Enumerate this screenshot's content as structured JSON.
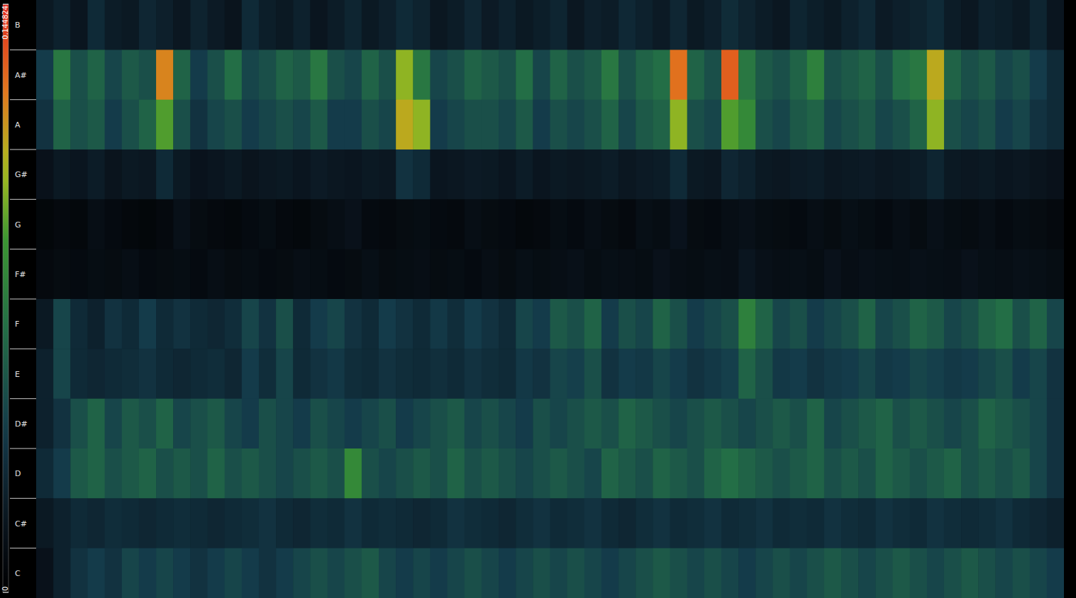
{
  "chart_data": {
    "type": "heatmap",
    "categories": [
      "B",
      "A#",
      "A",
      "G#",
      "G",
      "F#",
      "F",
      "E",
      "D#",
      "D",
      "C#",
      "C"
    ],
    "tick_labels": "y",
    "colorbar": {
      "range": [
        0,
        0.144824
      ],
      "ticks": [
        0,
        0.144824
      ]
    },
    "values": [
      [
        0.02,
        0.025,
        0.018,
        0.03,
        0.022,
        0.02,
        0.028,
        0.024,
        0.019,
        0.026,
        0.021,
        0.017,
        0.03,
        0.023,
        0.02,
        0.025,
        0.018,
        0.022,
        0.027,
        0.02,
        0.024,
        0.03,
        0.026,
        0.019,
        0.022,
        0.028,
        0.021,
        0.025,
        0.02,
        0.023,
        0.027,
        0.019,
        0.024,
        0.022,
        0.029,
        0.025,
        0.021,
        0.028,
        0.02,
        0.024,
        0.031,
        0.026,
        0.022,
        0.019,
        0.027,
        0.023,
        0.02,
        0.025,
        0.029,
        0.021,
        0.024,
        0.026,
        0.03,
        0.022,
        0.019,
        0.025,
        0.023,
        0.02,
        0.027,
        0.018
      ],
      [
        0.04,
        0.07,
        0.05,
        0.06,
        0.045,
        0.055,
        0.05,
        0.12,
        0.06,
        0.04,
        0.05,
        0.065,
        0.045,
        0.05,
        0.06,
        0.055,
        0.07,
        0.05,
        0.045,
        0.06,
        0.05,
        0.1,
        0.07,
        0.045,
        0.05,
        0.06,
        0.055,
        0.05,
        0.065,
        0.045,
        0.06,
        0.05,
        0.055,
        0.07,
        0.05,
        0.06,
        0.065,
        0.125,
        0.06,
        0.05,
        0.13,
        0.07,
        0.055,
        0.05,
        0.06,
        0.075,
        0.05,
        0.055,
        0.06,
        0.05,
        0.065,
        0.07,
        0.11,
        0.06,
        0.05,
        0.055,
        0.045,
        0.05,
        0.04,
        0.03
      ],
      [
        0.035,
        0.06,
        0.05,
        0.055,
        0.04,
        0.05,
        0.06,
        0.09,
        0.05,
        0.035,
        0.045,
        0.05,
        0.04,
        0.045,
        0.05,
        0.045,
        0.055,
        0.04,
        0.04,
        0.05,
        0.045,
        0.11,
        0.1,
        0.04,
        0.045,
        0.05,
        0.05,
        0.045,
        0.055,
        0.04,
        0.05,
        0.045,
        0.05,
        0.06,
        0.045,
        0.055,
        0.06,
        0.1,
        0.05,
        0.045,
        0.09,
        0.08,
        0.05,
        0.045,
        0.055,
        0.06,
        0.045,
        0.05,
        0.055,
        0.045,
        0.05,
        0.06,
        0.1,
        0.05,
        0.045,
        0.05,
        0.04,
        0.045,
        0.035,
        0.03
      ],
      [
        0.015,
        0.02,
        0.018,
        0.022,
        0.017,
        0.02,
        0.019,
        0.03,
        0.02,
        0.016,
        0.018,
        0.02,
        0.017,
        0.019,
        0.02,
        0.018,
        0.021,
        0.019,
        0.018,
        0.02,
        0.019,
        0.035,
        0.03,
        0.018,
        0.019,
        0.021,
        0.02,
        0.018,
        0.022,
        0.018,
        0.02,
        0.019,
        0.02,
        0.022,
        0.019,
        0.021,
        0.022,
        0.03,
        0.02,
        0.019,
        0.028,
        0.025,
        0.02,
        0.019,
        0.021,
        0.022,
        0.019,
        0.02,
        0.021,
        0.019,
        0.02,
        0.022,
        0.027,
        0.02,
        0.019,
        0.02,
        0.018,
        0.019,
        0.017,
        0.015
      ],
      [
        0.006,
        0.008,
        0.007,
        0.012,
        0.009,
        0.007,
        0.006,
        0.008,
        0.014,
        0.01,
        0.008,
        0.007,
        0.009,
        0.011,
        0.008,
        0.007,
        0.01,
        0.012,
        0.015,
        0.009,
        0.008,
        0.01,
        0.011,
        0.009,
        0.008,
        0.012,
        0.01,
        0.009,
        0.007,
        0.008,
        0.011,
        0.009,
        0.012,
        0.01,
        0.008,
        0.013,
        0.011,
        0.016,
        0.01,
        0.009,
        0.012,
        0.014,
        0.011,
        0.01,
        0.009,
        0.012,
        0.01,
        0.013,
        0.011,
        0.009,
        0.012,
        0.01,
        0.014,
        0.011,
        0.01,
        0.012,
        0.009,
        0.011,
        0.01,
        0.008
      ],
      [
        0.008,
        0.01,
        0.009,
        0.011,
        0.01,
        0.012,
        0.009,
        0.01,
        0.011,
        0.009,
        0.012,
        0.01,
        0.011,
        0.009,
        0.01,
        0.012,
        0.011,
        0.009,
        0.01,
        0.013,
        0.01,
        0.011,
        0.012,
        0.01,
        0.011,
        0.009,
        0.012,
        0.01,
        0.013,
        0.011,
        0.012,
        0.014,
        0.011,
        0.013,
        0.012,
        0.011,
        0.015,
        0.012,
        0.011,
        0.013,
        0.012,
        0.018,
        0.014,
        0.012,
        0.013,
        0.011,
        0.015,
        0.012,
        0.014,
        0.013,
        0.012,
        0.014,
        0.013,
        0.012,
        0.015,
        0.013,
        0.012,
        0.014,
        0.013,
        0.011
      ],
      [
        0.02,
        0.045,
        0.03,
        0.025,
        0.035,
        0.03,
        0.04,
        0.03,
        0.035,
        0.03,
        0.028,
        0.032,
        0.045,
        0.035,
        0.05,
        0.03,
        0.04,
        0.045,
        0.035,
        0.03,
        0.04,
        0.035,
        0.03,
        0.038,
        0.032,
        0.04,
        0.035,
        0.03,
        0.045,
        0.04,
        0.055,
        0.05,
        0.06,
        0.04,
        0.05,
        0.045,
        0.06,
        0.05,
        0.04,
        0.045,
        0.05,
        0.075,
        0.06,
        0.045,
        0.05,
        0.04,
        0.045,
        0.05,
        0.06,
        0.045,
        0.05,
        0.06,
        0.055,
        0.045,
        0.05,
        0.06,
        0.065,
        0.05,
        0.06,
        0.045
      ],
      [
        0.025,
        0.045,
        0.03,
        0.028,
        0.03,
        0.032,
        0.035,
        0.03,
        0.028,
        0.03,
        0.032,
        0.028,
        0.04,
        0.032,
        0.045,
        0.03,
        0.035,
        0.038,
        0.032,
        0.03,
        0.035,
        0.032,
        0.03,
        0.033,
        0.03,
        0.035,
        0.032,
        0.03,
        0.038,
        0.035,
        0.045,
        0.042,
        0.05,
        0.035,
        0.04,
        0.038,
        0.045,
        0.04,
        0.035,
        0.038,
        0.042,
        0.06,
        0.05,
        0.038,
        0.04,
        0.035,
        0.038,
        0.04,
        0.045,
        0.038,
        0.04,
        0.045,
        0.042,
        0.038,
        0.04,
        0.045,
        0.05,
        0.04,
        0.045,
        0.035
      ],
      [
        0.025,
        0.035,
        0.05,
        0.06,
        0.045,
        0.055,
        0.05,
        0.06,
        0.045,
        0.05,
        0.055,
        0.045,
        0.04,
        0.05,
        0.045,
        0.04,
        0.05,
        0.045,
        0.04,
        0.045,
        0.05,
        0.04,
        0.045,
        0.05,
        0.055,
        0.045,
        0.05,
        0.045,
        0.04,
        0.05,
        0.045,
        0.05,
        0.055,
        0.05,
        0.06,
        0.055,
        0.05,
        0.045,
        0.05,
        0.055,
        0.05,
        0.045,
        0.05,
        0.055,
        0.05,
        0.06,
        0.045,
        0.05,
        0.055,
        0.06,
        0.05,
        0.055,
        0.05,
        0.045,
        0.05,
        0.06,
        0.055,
        0.05,
        0.045,
        0.035
      ],
      [
        0.03,
        0.04,
        0.055,
        0.06,
        0.05,
        0.055,
        0.06,
        0.05,
        0.055,
        0.05,
        0.06,
        0.05,
        0.055,
        0.05,
        0.045,
        0.05,
        0.055,
        0.05,
        0.08,
        0.05,
        0.045,
        0.05,
        0.055,
        0.05,
        0.06,
        0.05,
        0.055,
        0.05,
        0.045,
        0.05,
        0.055,
        0.05,
        0.045,
        0.06,
        0.055,
        0.05,
        0.06,
        0.055,
        0.05,
        0.06,
        0.065,
        0.06,
        0.055,
        0.05,
        0.055,
        0.06,
        0.05,
        0.055,
        0.05,
        0.06,
        0.055,
        0.05,
        0.055,
        0.06,
        0.05,
        0.055,
        0.05,
        0.055,
        0.045,
        0.035
      ],
      [
        0.02,
        0.025,
        0.03,
        0.028,
        0.032,
        0.03,
        0.028,
        0.03,
        0.032,
        0.03,
        0.028,
        0.03,
        0.032,
        0.035,
        0.03,
        0.028,
        0.032,
        0.03,
        0.035,
        0.03,
        0.032,
        0.03,
        0.028,
        0.03,
        0.035,
        0.032,
        0.03,
        0.028,
        0.032,
        0.035,
        0.03,
        0.032,
        0.035,
        0.03,
        0.028,
        0.032,
        0.035,
        0.03,
        0.032,
        0.035,
        0.03,
        0.032,
        0.035,
        0.03,
        0.032,
        0.03,
        0.035,
        0.032,
        0.03,
        0.035,
        0.032,
        0.03,
        0.035,
        0.032,
        0.03,
        0.032,
        0.035,
        0.03,
        0.028,
        0.025
      ],
      [
        0.015,
        0.025,
        0.035,
        0.04,
        0.035,
        0.045,
        0.04,
        0.045,
        0.04,
        0.035,
        0.04,
        0.045,
        0.04,
        0.035,
        0.04,
        0.045,
        0.05,
        0.045,
        0.05,
        0.055,
        0.045,
        0.04,
        0.045,
        0.04,
        0.045,
        0.05,
        0.045,
        0.04,
        0.045,
        0.05,
        0.045,
        0.05,
        0.045,
        0.04,
        0.045,
        0.05,
        0.055,
        0.05,
        0.045,
        0.05,
        0.045,
        0.04,
        0.045,
        0.05,
        0.045,
        0.05,
        0.055,
        0.05,
        0.045,
        0.05,
        0.055,
        0.05,
        0.045,
        0.05,
        0.055,
        0.05,
        0.045,
        0.05,
        0.045,
        0.04
      ]
    ]
  }
}
